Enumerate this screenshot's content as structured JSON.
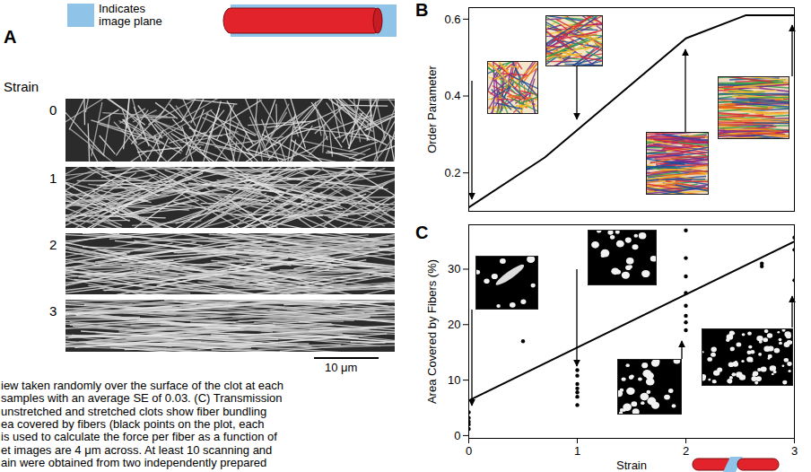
{
  "panel_a": {
    "label": "A",
    "legend_text": "Indicates image plane",
    "row_title": "Strain",
    "rows": [
      0,
      1,
      2,
      3
    ],
    "scale_bar": "10 μm"
  },
  "chart_data": [
    {
      "panel_label": "B",
      "type": "line",
      "x": [
        0,
        0.7,
        2,
        2.55,
        3
      ],
      "values": [
        0.11,
        0.24,
        0.55,
        0.61,
        0.61
      ],
      "color": "#000000",
      "xlim": [
        0,
        3
      ],
      "ylim": [
        0.1,
        0.63
      ],
      "yticks": [
        0.2,
        0.4,
        0.6
      ],
      "ylabel": "Order Parameter",
      "tick_labels": "y",
      "grid": false
    },
    {
      "panel_label": "C",
      "type": "scatter",
      "xlabel": "Strain",
      "ylabel": "Area Covered by Fibers (%)",
      "xlim": [
        0,
        3
      ],
      "xticks": [
        0,
        1,
        2,
        3
      ],
      "ylim": [
        -0.5,
        38
      ],
      "yticks": [
        0,
        10,
        20,
        30
      ],
      "grid": false,
      "series": [
        {
          "type": "scatter",
          "marker": "circle",
          "color": "#000000",
          "x": [
            0,
            0,
            0,
            0,
            0,
            0.5,
            1,
            1,
            1,
            1,
            1,
            1,
            1,
            2,
            2,
            2,
            2,
            2,
            2,
            2,
            2,
            2.7,
            2.7,
            3,
            3,
            3
          ],
          "values": [
            4.2,
            3.2,
            2.5,
            2.0,
            1.2,
            17,
            11.8,
            10.8,
            9.3,
            8.5,
            7.8,
            7.0,
            5.5,
            37,
            32,
            28.7,
            25.7,
            23.4,
            21.6,
            20.4,
            19,
            31,
            30.5,
            35.7,
            33.5,
            28
          ]
        },
        {
          "type": "line",
          "line_style": "solid",
          "color": "#000000",
          "x": [
            0,
            3
          ],
          "values": [
            6.3,
            35
          ]
        }
      ]
    }
  ],
  "caption_lines": [
    "iew taken randomly over the surface of the clot at each",
    "samples with an average SE of 0.03. (C) Transmission",
    "unstretched and stretched clots show fiber bundling",
    "ea covered by fibers (black points on the plot, each",
    "is used to calculate the force per fiber as a function of",
    "et images are 4 μm across. At least 10 scanning and",
    "ain were obtained from two independently prepared"
  ]
}
